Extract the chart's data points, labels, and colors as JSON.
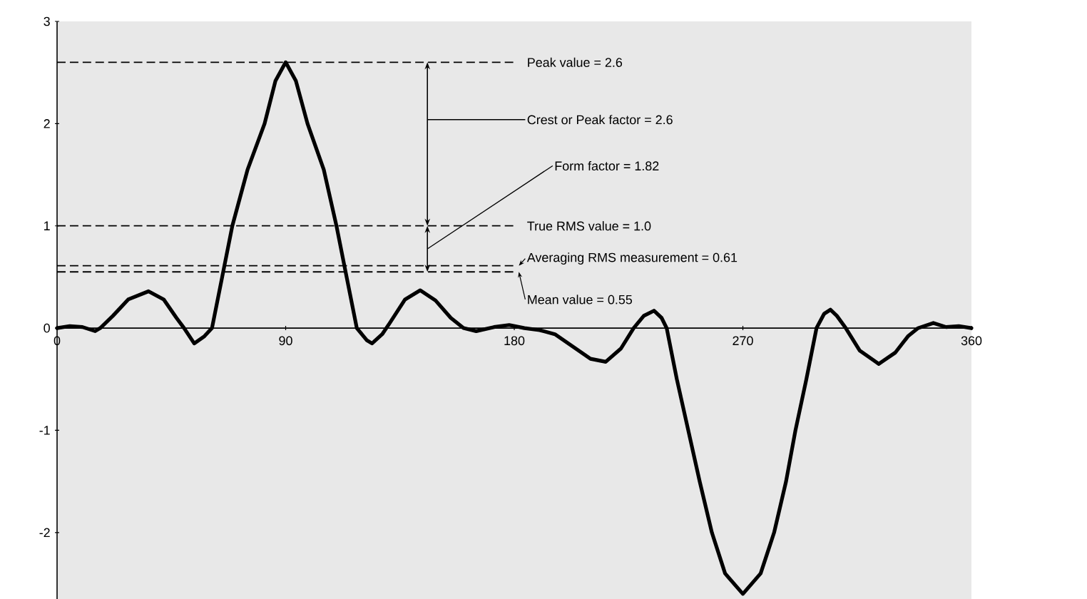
{
  "chart_data": {
    "type": "line",
    "x": [
      0,
      5,
      10,
      15,
      17,
      22,
      28,
      36,
      42,
      47,
      50,
      54,
      58,
      61,
      65,
      69,
      75,
      81.7,
      86,
      90,
      94,
      98.6,
      105,
      110,
      114,
      118,
      122,
      124,
      128,
      131,
      137,
      143,
      149,
      155,
      160,
      165,
      172,
      178,
      184,
      190,
      196,
      203,
      210,
      216,
      222,
      227,
      231,
      235,
      238,
      240,
      244,
      248.5,
      253,
      257.8,
      263,
      270,
      277,
      282.3,
      287,
      290.7,
      295,
      299,
      302,
      304.5,
      307,
      310.5,
      316,
      323.5,
      330,
      335,
      339,
      345,
      350,
      355,
      360
    ],
    "series": [
      {
        "color": "#000000",
        "values": [
          0,
          0.02,
          0.01,
          -0.03,
          0,
          0.12,
          0.28,
          0.36,
          0.28,
          0.1,
          0,
          -0.15,
          -0.08,
          0,
          0.5,
          1.0,
          1.55,
          2.0,
          2.42,
          2.6,
          2.42,
          2.0,
          1.55,
          1.0,
          0.5,
          0,
          -0.12,
          -0.15,
          -0.06,
          0.05,
          0.28,
          0.37,
          0.27,
          0.1,
          0,
          -0.03,
          0.01,
          0.03,
          0,
          -0.02,
          -0.06,
          -0.18,
          -0.3,
          -0.33,
          -0.2,
          0,
          0.12,
          0.17,
          0.1,
          0,
          -0.5,
          -1.0,
          -1.5,
          -2.0,
          -2.4,
          -2.6,
          -2.4,
          -2.0,
          -1.5,
          -1.0,
          -0.5,
          0,
          0.14,
          0.18,
          0.12,
          0,
          -0.22,
          -0.35,
          -0.24,
          -0.08,
          0,
          0.05,
          0.01,
          0.02,
          0
        ]
      }
    ],
    "xlim": [
      0,
      360
    ],
    "ylim": [
      -2.65,
      3
    ],
    "xticks": [
      0,
      90,
      180,
      270,
      360
    ],
    "yticks": [
      -2,
      -1,
      0,
      1,
      2,
      3
    ],
    "ref_lines": [
      {
        "axis": "y",
        "value": 2.6,
        "label": "Peak value = 2.6",
        "color": "#000000",
        "line_style": "dashed"
      },
      {
        "axis": "y",
        "value": 1.0,
        "label": "True RMS value = 1.0",
        "color": "#000000",
        "line_style": "dashed"
      },
      {
        "axis": "y",
        "value": 0.61,
        "label": "Averaging RMS measurement = 0.61",
        "color": "#000000",
        "line_style": "dashed"
      },
      {
        "axis": "y",
        "value": 0.55,
        "label": "Mean value = 0.55",
        "color": "#000000",
        "line_style": "dashed"
      }
    ],
    "annotations": [
      "Crest or Peak factor = 2.6",
      "Form factor = 1.82"
    ],
    "marker": "none",
    "line_style": "solid",
    "grid": false
  }
}
